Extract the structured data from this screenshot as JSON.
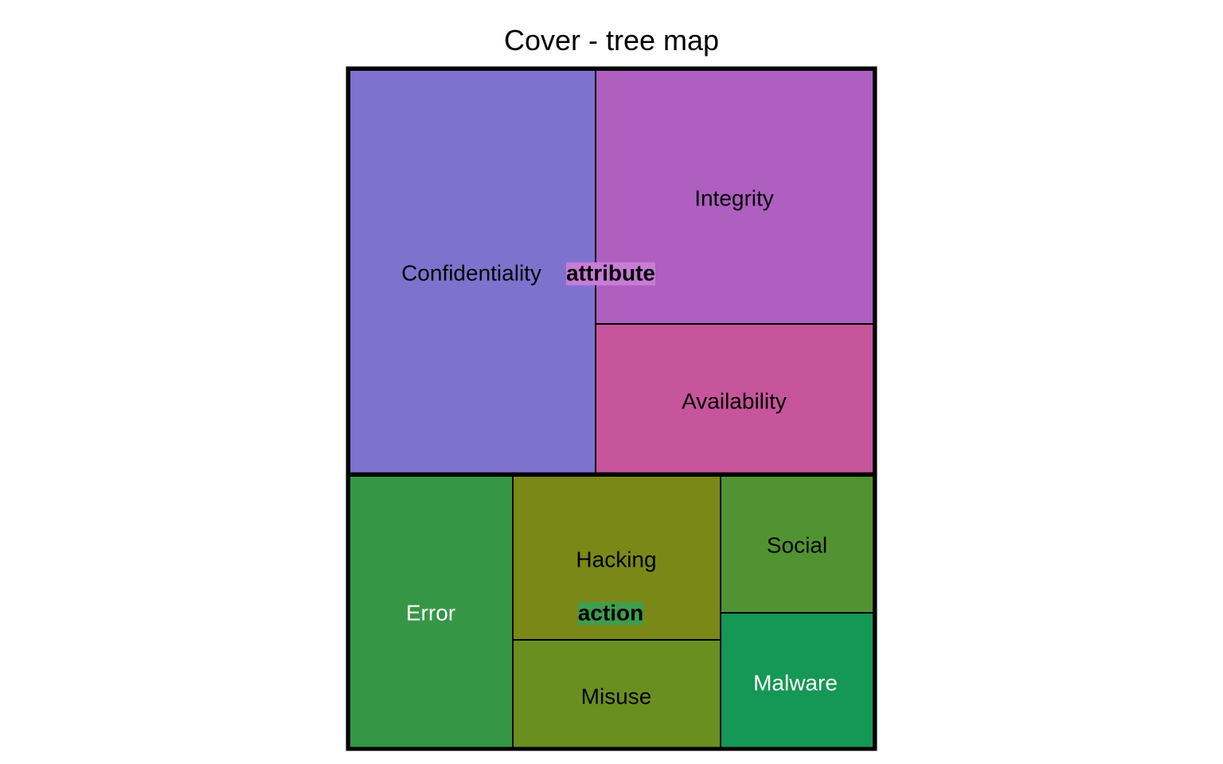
{
  "chart_data": {
    "type": "treemap",
    "title": "Cover - tree map",
    "groups": [
      {
        "name": "attribute",
        "label_bg": "#C77CD6",
        "children": [
          {
            "name": "Confidentiality",
            "color": "#7F72CE",
            "label_color": "#000000"
          },
          {
            "name": "Integrity",
            "color": "#AE5FC0",
            "label_color": "#000000"
          },
          {
            "name": "Availability",
            "color": "#C6559B",
            "label_color": "#000000"
          }
        ]
      },
      {
        "name": "action",
        "label_bg": "#3F9E4B",
        "children": [
          {
            "name": "Error",
            "color": "#359745",
            "label_color": "#ffffff"
          },
          {
            "name": "Hacking",
            "color": "#7A8817",
            "label_color": "#000000"
          },
          {
            "name": "Misuse",
            "color": "#6A8F20",
            "label_color": "#000000"
          },
          {
            "name": "Social",
            "color": "#519332",
            "label_color": "#000000"
          },
          {
            "name": "Malware",
            "color": "#159755",
            "label_color": "#ffffff"
          }
        ]
      }
    ]
  }
}
